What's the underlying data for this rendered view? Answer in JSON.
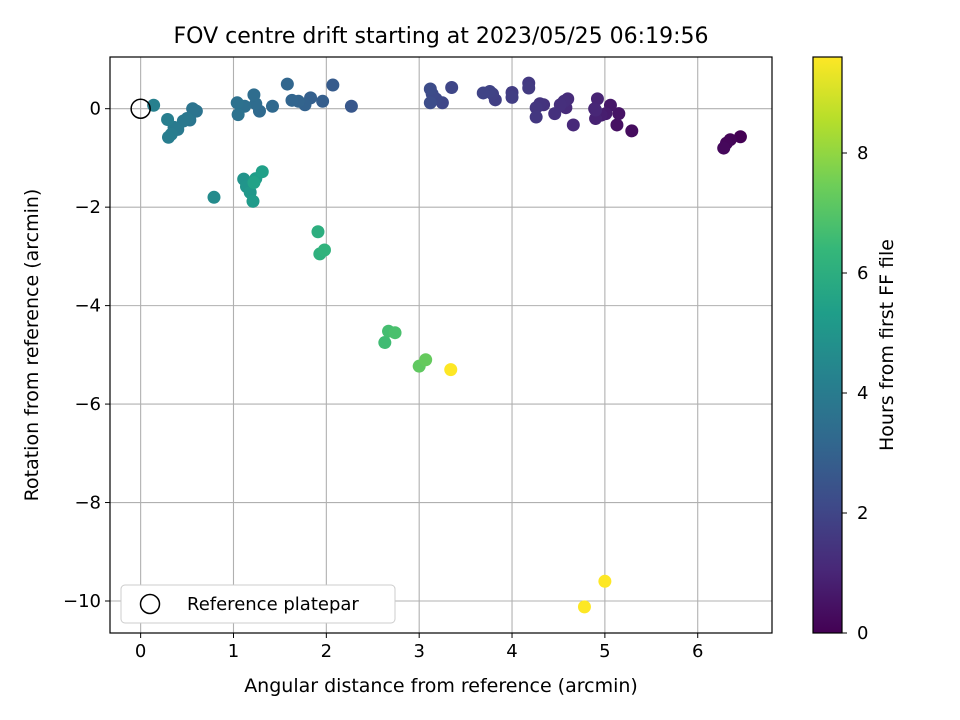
{
  "chart_data": {
    "type": "scatter",
    "title": "FOV centre drift starting at 2023/05/25 06:19:56",
    "xlabel": "Angular distance from reference (arcmin)",
    "ylabel": "Rotation from reference (arcmin)",
    "xlim": [
      -0.33,
      6.8
    ],
    "ylim": [
      -10.65,
      1.05
    ],
    "xticks": [
      0,
      1,
      2,
      3,
      4,
      5,
      6
    ],
    "yticks": [
      0,
      -2,
      -4,
      -6,
      -8,
      -10
    ],
    "grid": true,
    "legend": {
      "placement": "lower-left",
      "entries": [
        "Reference platepar"
      ]
    },
    "reference_point": {
      "x": 0,
      "y": 0,
      "label": "Reference platepar",
      "marker": "open-circle"
    },
    "colorbar": {
      "label": "Hours from first FF file",
      "range": [
        0,
        9.6
      ],
      "ticks": [
        0,
        2,
        4,
        6,
        8
      ],
      "colormap": "viridis",
      "colors": [
        "#440154",
        "#482878",
        "#3e4a89",
        "#31688e",
        "#26828e",
        "#1f9e89",
        "#35b779",
        "#6ece58",
        "#b5de2b",
        "#fde725"
      ]
    },
    "series": [
      {
        "x": [
          6.46,
          6.35,
          6.31,
          6.28,
          5.29,
          5.13,
          5.15,
          5.06,
          5.01,
          4.96,
          4.9,
          4.92,
          4.89,
          4.9,
          4.66,
          4.58,
          4.6,
          4.56,
          4.52,
          4.46,
          4.34,
          4.3,
          4.26,
          4.26,
          4.18,
          4.18,
          4.0,
          4.0,
          3.82,
          3.79,
          3.76,
          3.69,
          3.35,
          3.25,
          3.18,
          3.14,
          3.12,
          3.12,
          2.27,
          2.07,
          1.96,
          1.83,
          1.77,
          1.7,
          1.63,
          1.58,
          1.42,
          1.28,
          1.24,
          1.22,
          1.12,
          1.04,
          1.05,
          0.6,
          0.56,
          0.53,
          0.5,
          0.46,
          0.4,
          0.36,
          0.33,
          0.3,
          0.29,
          0.14,
          0.79,
          1.11,
          1.14,
          1.18,
          1.21,
          1.24,
          1.31,
          1.22,
          1.91,
          1.93,
          1.98,
          2.63,
          2.67,
          2.74,
          3.0,
          3.07,
          3.34,
          5.0,
          4.78
        ],
        "y": [
          -0.57,
          -0.63,
          -0.7,
          -0.8,
          -0.45,
          -0.33,
          -0.1,
          0.07,
          -0.1,
          -0.13,
          -0.2,
          0.2,
          0.0,
          -0.03,
          -0.33,
          0.02,
          0.2,
          0.15,
          0.08,
          -0.1,
          0.08,
          0.1,
          0.02,
          -0.17,
          0.52,
          0.42,
          0.33,
          0.23,
          0.18,
          0.3,
          0.35,
          0.32,
          0.43,
          0.12,
          0.2,
          0.3,
          0.4,
          0.12,
          0.05,
          0.48,
          0.15,
          0.22,
          0.08,
          0.15,
          0.17,
          0.5,
          0.05,
          -0.05,
          0.1,
          0.28,
          0.05,
          0.12,
          -0.12,
          -0.05,
          0.0,
          -0.23,
          -0.2,
          -0.25,
          -0.42,
          -0.38,
          -0.52,
          -0.58,
          -0.22,
          0.07,
          -1.8,
          -1.43,
          -1.58,
          -1.7,
          -1.88,
          -1.42,
          -1.28,
          -1.5,
          -2.5,
          -2.95,
          -2.87,
          -4.75,
          -4.52,
          -4.55,
          -5.23,
          -5.1,
          -5.3,
          -9.6,
          -10.12
        ],
        "hours": [
          0.0,
          0.1,
          0.15,
          0.2,
          0.3,
          0.4,
          0.5,
          0.6,
          0.7,
          0.8,
          0.9,
          0.95,
          1.0,
          1.05,
          1.1,
          1.15,
          1.2,
          1.25,
          1.3,
          1.35,
          1.4,
          1.45,
          1.5,
          1.55,
          1.6,
          1.65,
          1.7,
          1.75,
          1.8,
          1.85,
          1.9,
          1.95,
          2.0,
          2.05,
          2.1,
          2.15,
          2.2,
          2.25,
          2.6,
          2.75,
          2.85,
          2.9,
          3.0,
          3.05,
          3.1,
          3.15,
          3.25,
          3.3,
          3.35,
          3.4,
          3.5,
          3.55,
          3.6,
          3.65,
          3.7,
          3.75,
          3.8,
          3.85,
          3.9,
          3.95,
          4.0,
          4.05,
          4.1,
          4.2,
          4.6,
          4.9,
          5.0,
          5.1,
          5.2,
          5.3,
          5.4,
          5.5,
          6.0,
          6.1,
          6.2,
          6.6,
          6.7,
          6.8,
          7.2,
          7.3,
          9.6,
          9.6,
          9.6
        ]
      }
    ]
  }
}
